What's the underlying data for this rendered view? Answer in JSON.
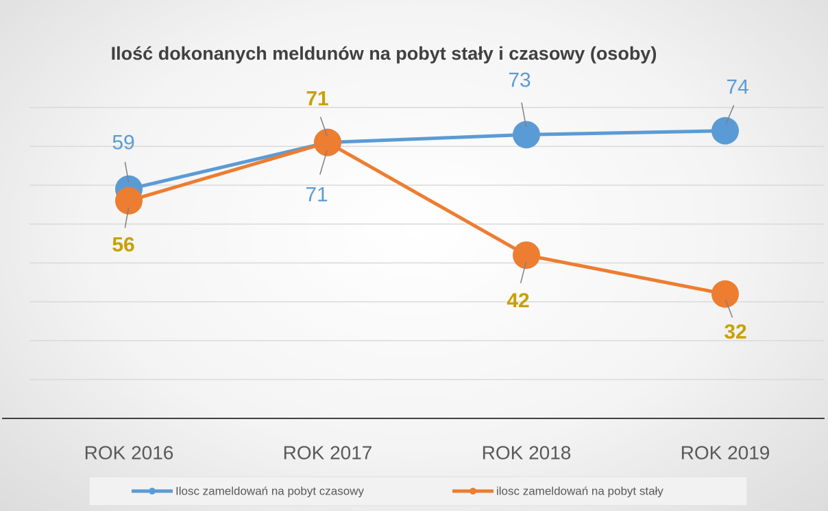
{
  "chart_data": {
    "type": "line",
    "title": "Ilość dokonanych meldunów na pobyt stały i czasowy (osoby)",
    "categories": [
      "ROK 2016",
      "ROK 2017",
      "ROK 2018",
      "ROK 2019"
    ],
    "series": [
      {
        "name": "Ilosc zameldowań na pobyt czasowy",
        "color": "#5b9bd5",
        "label_color": "#5b9bd5",
        "values": [
          59,
          71,
          73,
          74
        ]
      },
      {
        "name": "ilosc zameldowań na pobyt stały",
        "color": "#ed7d31",
        "label_color": "#c9a000",
        "values": [
          56,
          71,
          42,
          32
        ]
      }
    ],
    "ylim": [
      0,
      90
    ],
    "yticks": [
      0,
      10,
      20,
      30,
      40,
      50,
      60,
      70,
      80
    ],
    "grid": true,
    "legend": "bottom"
  }
}
